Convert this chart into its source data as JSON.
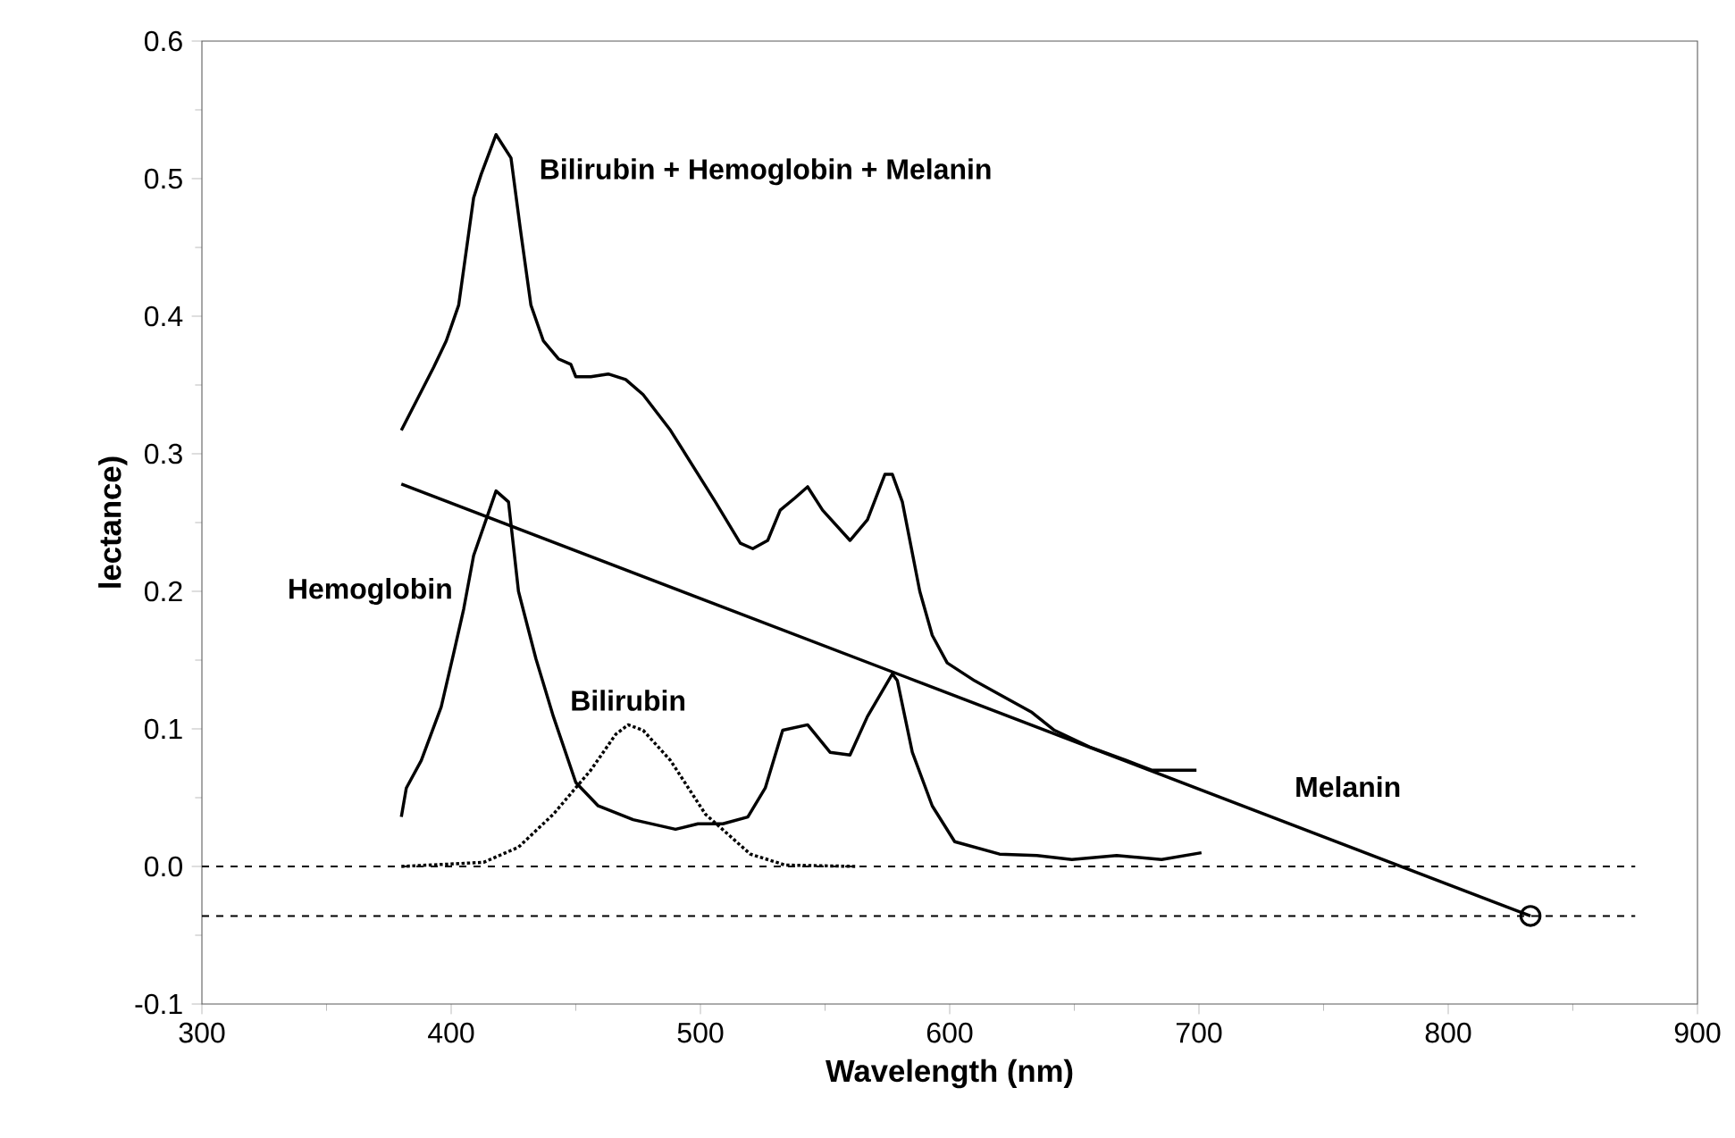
{
  "chart_data": {
    "type": "line",
    "xlabel": "Wavelength (nm)",
    "ylabel": "lectance)",
    "xlim": [
      300,
      900
    ],
    "ylim": [
      -0.1,
      0.6
    ],
    "xticks": [
      300,
      400,
      500,
      600,
      700,
      800,
      900
    ],
    "yticks": [
      -0.1,
      {
        "value": 0,
        "label": "0.0"
      },
      0.1,
      0.2,
      0.3,
      0.4,
      0.5,
      0.6
    ],
    "ref_lines": [
      {
        "axis": "y",
        "value": 0.0,
        "line_style": "dashed"
      },
      {
        "axis": "y",
        "value": -0.036,
        "line_style": "dashed"
      }
    ],
    "series": [
      {
        "name": "Bilirubin + Hemoglobin + Melanin",
        "color": "#000000",
        "line_style": "solid",
        "x": [
          380,
          393,
          398,
          403,
          409,
          412,
          418,
          424,
          428,
          432,
          437,
          443,
          448,
          450,
          456,
          463,
          470,
          477,
          488,
          506,
          516,
          521,
          527,
          532,
          538,
          543,
          549,
          560,
          567,
          574,
          577,
          581,
          588,
          593,
          599,
          610,
          620,
          633,
          642,
          656,
          671,
          681,
          699
        ],
        "values": [
          0.317,
          0.363,
          0.382,
          0.408,
          0.486,
          0.503,
          0.532,
          0.515,
          0.46,
          0.408,
          0.382,
          0.369,
          0.365,
          0.356,
          0.356,
          0.358,
          0.354,
          0.343,
          0.317,
          0.265,
          0.235,
          0.231,
          0.237,
          0.259,
          0.268,
          0.276,
          0.259,
          0.237,
          0.252,
          0.285,
          0.285,
          0.265,
          0.2,
          0.168,
          0.148,
          0.135,
          0.125,
          0.112,
          0.099,
          0.087,
          0.077,
          0.07,
          0.07
        ]
      },
      {
        "name": "Hemoglobin",
        "color": "#000000",
        "line_style": "solid",
        "x": [
          380,
          382,
          388,
          396,
          401,
          405,
          409,
          418,
          423,
          427,
          434,
          441,
          450,
          459,
          473,
          490,
          499,
          509,
          519,
          526,
          533,
          543,
          552,
          560,
          567,
          577,
          579,
          585,
          593,
          602,
          620,
          635,
          649,
          667,
          685,
          701
        ],
        "values": [
          0.036,
          0.057,
          0.077,
          0.116,
          0.155,
          0.187,
          0.226,
          0.273,
          0.265,
          0.2,
          0.151,
          0.109,
          0.061,
          0.044,
          0.034,
          0.027,
          0.031,
          0.031,
          0.036,
          0.057,
          0.099,
          0.103,
          0.083,
          0.081,
          0.109,
          0.14,
          0.135,
          0.083,
          0.044,
          0.018,
          0.009,
          0.008,
          0.005,
          0.008,
          0.005,
          0.01
        ]
      },
      {
        "name": "Bilirubin",
        "color": "#000000",
        "line_style": "dotted",
        "x": [
          380,
          413,
          427,
          441,
          456,
          466,
          471,
          477,
          488,
          502,
          520,
          534,
          563
        ],
        "values": [
          0.0,
          0.003,
          0.014,
          0.038,
          0.07,
          0.096,
          0.103,
          0.099,
          0.077,
          0.038,
          0.009,
          0.001,
          0.0
        ]
      },
      {
        "name": "Melanin",
        "color": "#000000",
        "line_style": "solid",
        "x": [
          380,
          833
        ],
        "values": [
          0.278,
          -0.036
        ]
      },
      {
        "type": "scatter",
        "color": "#000000",
        "marker": "circle",
        "x": [
          833
        ],
        "values": [
          -0.036
        ]
      }
    ]
  }
}
